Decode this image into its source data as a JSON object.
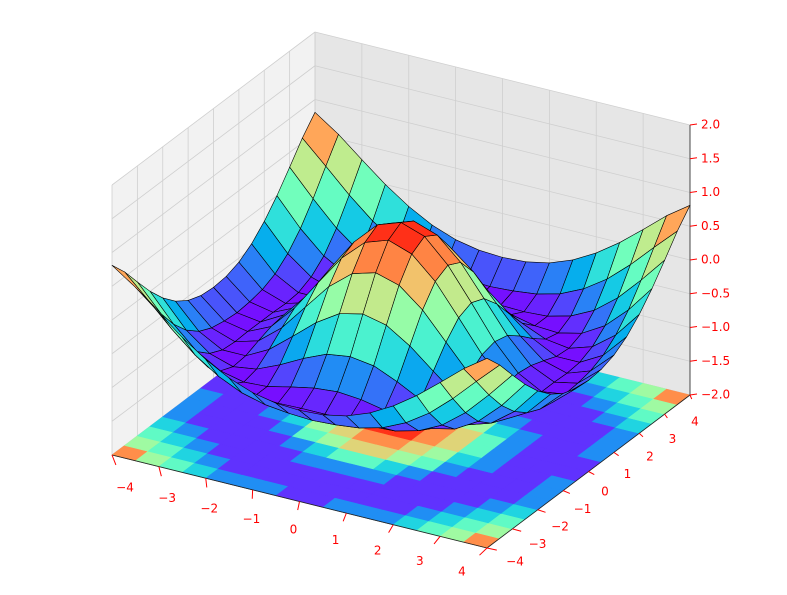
{
  "chart_data": {
    "type": "surface",
    "x": [
      -4,
      -3.5,
      -3,
      -2.5,
      -2,
      -1.5,
      -1,
      -0.5,
      0,
      0.5,
      1,
      1.5,
      2,
      2.5,
      3,
      3.5,
      4
    ],
    "y": [
      -4,
      -3.5,
      -3,
      -2.5,
      -2,
      -1.5,
      -1,
      -0.5,
      0,
      0.5,
      1,
      1.5,
      2,
      2.5,
      3,
      3.5,
      4
    ],
    "z": [
      [
        0.81,
        0.57,
        0.28,
        0,
        -0.24,
        -0.43,
        -0.56,
        -0.63,
        -0.65,
        -0.63,
        -0.56,
        -0.43,
        -0.24,
        0,
        0.28,
        0.57,
        0.81
      ],
      [
        0.57,
        0.24,
        -0.1,
        -0.4,
        -0.63,
        -0.79,
        -0.88,
        -0.92,
        -0.94,
        -0.92,
        -0.88,
        -0.79,
        -0.63,
        -0.4,
        -0.1,
        0.24,
        0.57
      ],
      [
        0.28,
        -0.1,
        -0.45,
        -0.72,
        -0.89,
        -0.98,
        -1,
        -0.99,
        -0.99,
        -0.99,
        -1,
        -0.98,
        -0.89,
        -0.72,
        -0.45,
        -0.1,
        0.28
      ],
      [
        0,
        -0.4,
        -0.72,
        -0.92,
        -1,
        -0.98,
        -0.9,
        -0.83,
        -0.8,
        -0.83,
        -0.9,
        -0.98,
        -1,
        -0.92,
        -0.72,
        -0.4,
        0
      ],
      [
        -0.24,
        -0.63,
        -0.89,
        -1,
        -0.95,
        -0.8,
        -0.62,
        -0.47,
        -0.42,
        -0.47,
        -0.62,
        -0.8,
        -0.95,
        -1,
        -0.89,
        -0.63,
        -0.24
      ],
      [
        -0.43,
        -0.79,
        -0.98,
        -0.98,
        -0.8,
        -0.52,
        -0.23,
        -0.01,
        0.07,
        -0.01,
        -0.23,
        -0.52,
        -0.8,
        -0.98,
        -0.98,
        -0.79,
        -0.43
      ],
      [
        -0.56,
        -0.88,
        -1,
        -0.9,
        -0.62,
        -0.23,
        0.16,
        0.44,
        0.54,
        0.44,
        0.16,
        -0.23,
        -0.62,
        -0.9,
        -1,
        -0.88,
        -0.56
      ],
      [
        -0.63,
        -0.92,
        -0.99,
        -0.83,
        -0.47,
        -0.01,
        0.44,
        0.76,
        0.88,
        0.76,
        0.44,
        -0.01,
        -0.47,
        -0.83,
        -0.99,
        -0.92,
        -0.63
      ],
      [
        -0.65,
        -0.94,
        -0.99,
        -0.8,
        -0.42,
        0.07,
        0.54,
        0.88,
        1,
        0.88,
        0.54,
        0.07,
        -0.42,
        -0.8,
        -0.99,
        -0.94,
        -0.65
      ],
      [
        -0.63,
        -0.92,
        -0.99,
        -0.83,
        -0.47,
        -0.01,
        0.44,
        0.76,
        0.88,
        0.76,
        0.44,
        -0.01,
        -0.47,
        -0.83,
        -0.99,
        -0.92,
        -0.63
      ],
      [
        -0.56,
        -0.88,
        -1,
        -0.9,
        -0.62,
        -0.23,
        0.16,
        0.44,
        0.54,
        0.44,
        0.16,
        -0.23,
        -0.62,
        -0.9,
        -1,
        -0.88,
        -0.56
      ],
      [
        -0.43,
        -0.79,
        -0.98,
        -0.98,
        -0.8,
        -0.52,
        -0.23,
        -0.01,
        0.07,
        -0.01,
        -0.23,
        -0.52,
        -0.8,
        -0.98,
        -0.98,
        -0.79,
        -0.43
      ],
      [
        -0.24,
        -0.63,
        -0.89,
        -1,
        -0.95,
        -0.8,
        -0.62,
        -0.47,
        -0.42,
        -0.47,
        -0.62,
        -0.8,
        -0.95,
        -1,
        -0.89,
        -0.63,
        -0.24
      ],
      [
        0,
        -0.4,
        -0.72,
        -0.92,
        -1,
        -0.98,
        -0.9,
        -0.83,
        -0.8,
        -0.83,
        -0.9,
        -0.98,
        -1,
        -0.92,
        -0.72,
        -0.4,
        0
      ],
      [
        0.28,
        -0.1,
        -0.45,
        -0.72,
        -0.89,
        -0.98,
        -1,
        -0.99,
        -0.99,
        -0.99,
        -1,
        -0.98,
        -0.89,
        -0.72,
        -0.45,
        -0.1,
        0.28
      ],
      [
        0.57,
        0.24,
        -0.1,
        -0.4,
        -0.63,
        -0.79,
        -0.88,
        -0.92,
        -0.94,
        -0.92,
        -0.88,
        -0.79,
        -0.63,
        -0.4,
        -0.1,
        0.24,
        0.57
      ],
      [
        0.81,
        0.57,
        0.28,
        0,
        -0.24,
        -0.43,
        -0.56,
        -0.63,
        -0.65,
        -0.63,
        -0.56,
        -0.43,
        -0.24,
        0,
        0.28,
        0.57,
        0.81
      ]
    ],
    "xlim": [
      -4,
      4
    ],
    "ylim": [
      -4,
      4
    ],
    "zlim": [
      -2,
      2
    ],
    "xticks": [
      {
        "value": -4,
        "label": "−4"
      },
      {
        "value": -3,
        "label": "−3"
      },
      {
        "value": -2,
        "label": "−2"
      },
      {
        "value": -1,
        "label": "−1"
      },
      0,
      1,
      2,
      3,
      4
    ],
    "yticks": [
      {
        "value": -4,
        "label": "−4"
      },
      {
        "value": -3,
        "label": "−3"
      },
      {
        "value": -2,
        "label": "−2"
      },
      {
        "value": -1,
        "label": "−1"
      },
      0,
      1,
      2,
      3,
      4
    ],
    "zticks": [
      {
        "value": -2,
        "label": "−2.0"
      },
      {
        "value": -1.5,
        "label": "−1.5"
      },
      {
        "value": -1,
        "label": "−1.0"
      },
      {
        "value": -0.5,
        "label": "−0.5"
      },
      {
        "value": 0,
        "label": "0.0"
      },
      0.5,
      {
        "value": 1,
        "label": "1.0"
      },
      1.5,
      {
        "value": 2,
        "label": "2.0"
      }
    ],
    "cmap": "rainbow",
    "contour_offset": -2,
    "tick_color": "red",
    "grid": true
  }
}
